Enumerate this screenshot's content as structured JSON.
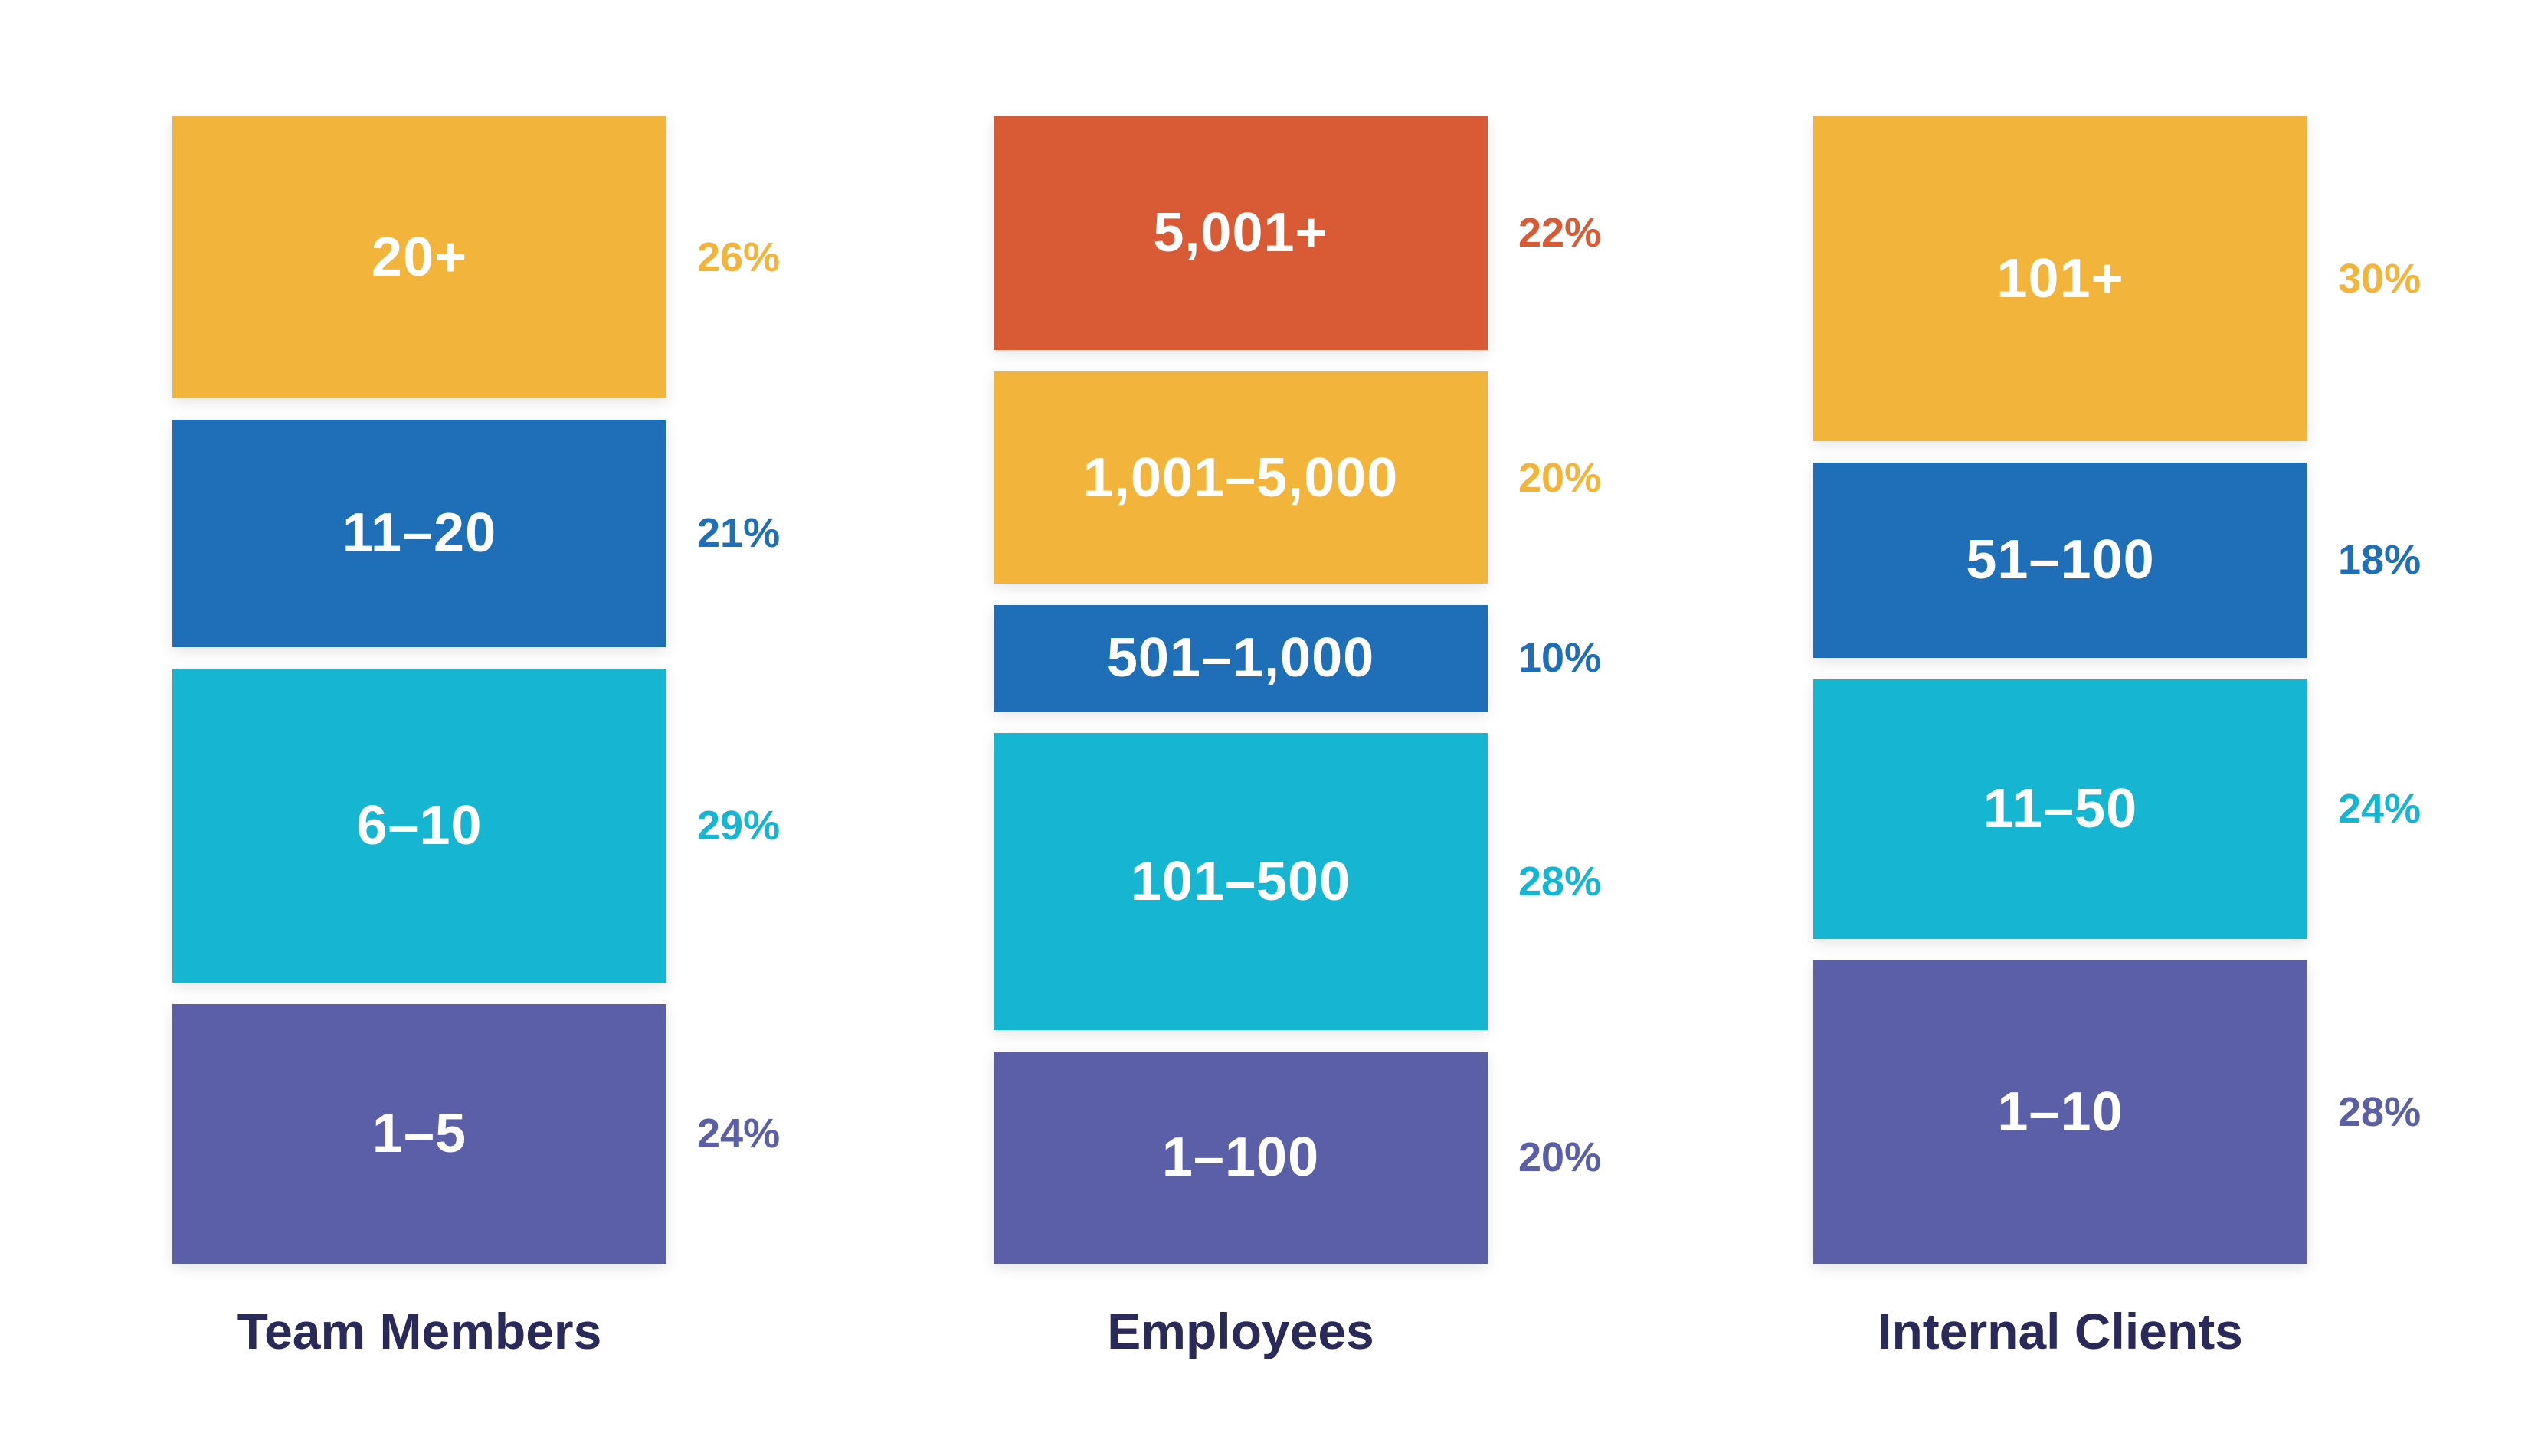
{
  "colors": {
    "yellow": "#f2b43a",
    "orange": "#d95b35",
    "blue": "#1f6fb8",
    "cyan": "#16b6d2",
    "purple": "#5a5fa8",
    "title": "#2a2a5a"
  },
  "chart_data": {
    "type": "bar",
    "stacked": true,
    "unit": "%",
    "columns": [
      {
        "title": "Team Members",
        "segments": [
          {
            "label": "20+",
            "value": 26,
            "value_label": "26%",
            "color": "#f2b43a"
          },
          {
            "label": "11–20",
            "value": 21,
            "value_label": "21%",
            "color": "#1f6fb8"
          },
          {
            "label": "6–10",
            "value": 29,
            "value_label": "29%",
            "color": "#16b6d2"
          },
          {
            "label": "1–5",
            "value": 24,
            "value_label": "24%",
            "color": "#5a5fa8"
          }
        ]
      },
      {
        "title": "Employees",
        "segments": [
          {
            "label": "5,001+",
            "value": 22,
            "value_label": "22%",
            "color": "#d95b35"
          },
          {
            "label": "1,001–5,000",
            "value": 20,
            "value_label": "20%",
            "color": "#f2b43a"
          },
          {
            "label": "501–1,000",
            "value": 10,
            "value_label": "10%",
            "color": "#1f6fb8"
          },
          {
            "label": "101–500",
            "value": 28,
            "value_label": "28%",
            "color": "#16b6d2"
          },
          {
            "label": "1–100",
            "value": 20,
            "value_label": "20%",
            "color": "#5a5fa8"
          }
        ]
      },
      {
        "title": "Internal Clients",
        "segments": [
          {
            "label": "101+",
            "value": 30,
            "value_label": "30%",
            "color": "#f2b43a"
          },
          {
            "label": "51–100",
            "value": 18,
            "value_label": "18%",
            "color": "#1f6fb8"
          },
          {
            "label": "11–50",
            "value": 24,
            "value_label": "24%",
            "color": "#16b6d2"
          },
          {
            "label": "1–10",
            "value": 28,
            "value_label": "28%",
            "color": "#5a5fa8"
          }
        ]
      }
    ]
  }
}
